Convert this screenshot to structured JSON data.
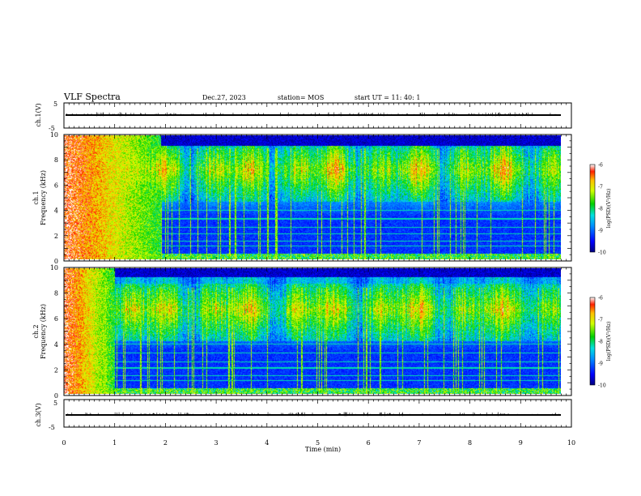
{
  "header": {
    "title": "VLF Spectra",
    "date": "Dec.27, 2023",
    "station": "station= MOS",
    "start": "start  UT  =   11: 40: 1"
  },
  "chart_data": [
    {
      "type": "line",
      "panel": "ch1-waveform",
      "ylabel": "ch.1(V)",
      "ylim": [
        -5,
        5
      ],
      "yticks": [
        "5",
        "-5"
      ],
      "baseline_v": 0
    },
    {
      "type": "heatmap",
      "panel": "ch1-spectrogram",
      "ylabel_line1": "ch.1",
      "ylabel_line2": "Frequency  (kHz)",
      "ylim": [
        0,
        10
      ],
      "yticks": [
        "0",
        "2",
        "4",
        "6",
        "8",
        "10"
      ],
      "colorbar": {
        "label": "log(PSD)(V²/Hz)",
        "min": -10,
        "max": -6,
        "ticks": [
          "-6",
          "-7",
          "-8",
          "-9",
          "-10"
        ]
      },
      "features": {
        "band_high_khz": [
          5.5,
          9.0
        ],
        "upper_cutoff_khz": 9.2,
        "lower_quiet_khz": [
          0.6,
          3.5
        ],
        "early_broadband_until_min": 1.9
      }
    },
    {
      "type": "heatmap",
      "panel": "ch2-spectrogram",
      "ylabel_line1": "ch.2",
      "ylabel_line2": "Frequency  (kHz)",
      "ylim": [
        0,
        10
      ],
      "yticks": [
        "0",
        "2",
        "4",
        "6",
        "8",
        "10"
      ],
      "colorbar": {
        "label": "log(PSD)(V²/Hz)",
        "min": -10,
        "max": -6,
        "ticks": [
          "-6",
          "-7",
          "-8",
          "-9",
          "-10"
        ]
      },
      "features": {
        "band_high_khz": [
          5.0,
          8.5
        ],
        "upper_cutoff_khz": 9.3,
        "lower_quiet_khz": [
          0.6,
          3.5
        ],
        "early_broadband_until_min": 1.0
      }
    },
    {
      "type": "line",
      "panel": "ch3-waveform",
      "ylabel": "ch.3(V)",
      "ylim": [
        -5,
        5
      ],
      "yticks": [
        "5",
        "-5"
      ],
      "baseline_v": -0.5
    }
  ],
  "xaxis": {
    "label": "Time  (min)",
    "range": [
      0,
      10
    ],
    "ticks": [
      "0",
      "1",
      "2",
      "3",
      "4",
      "5",
      "6",
      "7",
      "8",
      "9",
      "10"
    ]
  }
}
